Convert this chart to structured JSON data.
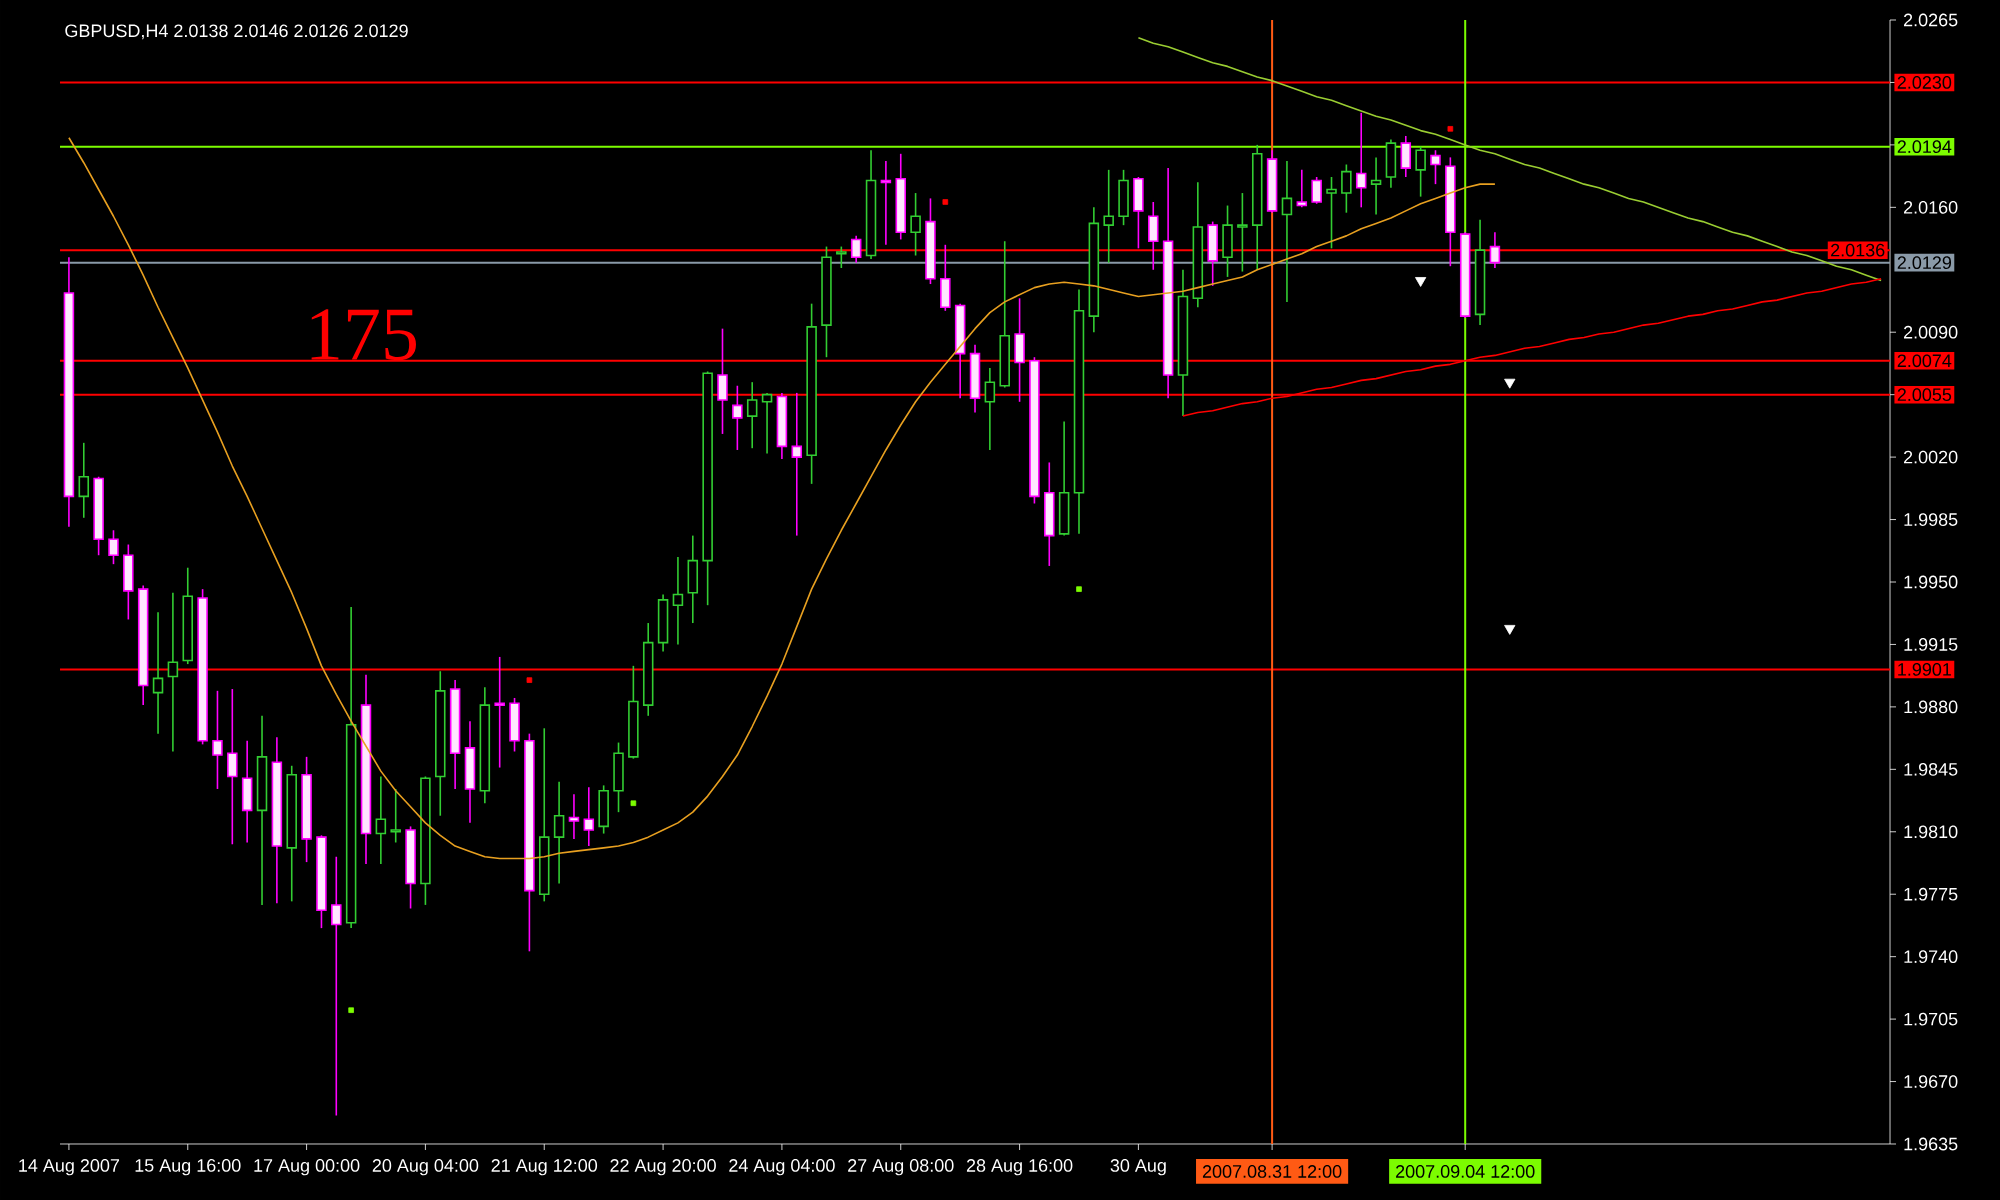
{
  "chart_data": {
    "type": "candlestick",
    "title": "GBPUSD,H4 2.0138 2.0146 2.0126 2.0129",
    "categories": [
      "14 Aug 2007",
      null,
      null,
      null,
      null,
      null,
      null,
      null,
      "15 Aug 16:00",
      null,
      null,
      null,
      null,
      null,
      null,
      null,
      "17 Aug 00:00",
      null,
      null,
      null,
      null,
      null,
      null,
      null,
      "20 Aug 04:00",
      null,
      null,
      null,
      null,
      null,
      null,
      null,
      "21 Aug 12:00",
      null,
      null,
      null,
      null,
      null,
      null,
      null,
      "22 Aug 20:00",
      null,
      null,
      null,
      null,
      null,
      null,
      null,
      "24 Aug 04:00",
      null,
      null,
      null,
      null,
      null,
      null,
      null,
      "27 Aug 08:00",
      null,
      null,
      null,
      null,
      null,
      null,
      null,
      "28 Aug 16:00",
      null,
      null,
      null,
      null,
      null,
      null,
      null,
      "30 Aug",
      null,
      null,
      null,
      null,
      null,
      null,
      null,
      null,
      "2007.08.31 12:00",
      null,
      null,
      null,
      null,
      null,
      null,
      null,
      null,
      null,
      null,
      null,
      null,
      "2007.09.04 12:00",
      null,
      null,
      null,
      null,
      null,
      null,
      null,
      null,
      null,
      null,
      null,
      null,
      null,
      null,
      null,
      null,
      null,
      null,
      null,
      null,
      null,
      null,
      null,
      null,
      null,
      null,
      null,
      null
    ],
    "ohlc": [
      [
        2.0112,
        2.0132,
        1.9981,
        1.9998
      ],
      [
        1.9998,
        2.0028,
        1.9986,
        2.0009
      ],
      [
        2.0008,
        2.0009,
        1.9965,
        1.9974
      ],
      [
        1.9974,
        1.9979,
        1.996,
        1.9965
      ],
      [
        1.9965,
        1.9971,
        1.9929,
        1.9945
      ],
      [
        1.9946,
        1.9948,
        1.9881,
        1.9892
      ],
      [
        1.9888,
        1.9933,
        1.9865,
        1.9896
      ],
      [
        1.9897,
        1.9944,
        1.9855,
        1.9905
      ],
      [
        1.9906,
        1.9958,
        1.9904,
        1.9942
      ],
      [
        1.9941,
        1.9946,
        1.9859,
        1.9861
      ],
      [
        1.9861,
        1.9889,
        1.9834,
        1.9853
      ],
      [
        1.9854,
        1.989,
        1.9803,
        1.9841
      ],
      [
        1.984,
        1.9861,
        1.9804,
        1.9822
      ],
      [
        1.9822,
        1.9875,
        1.9769,
        1.9852
      ],
      [
        1.9849,
        1.9863,
        1.977,
        1.9802
      ],
      [
        1.9801,
        1.9847,
        1.9771,
        1.9842
      ],
      [
        1.9842,
        1.9852,
        1.9793,
        1.9806
      ],
      [
        1.9807,
        1.9808,
        1.9756,
        1.9766
      ],
      [
        1.9769,
        1.9796,
        1.9651,
        1.9758
      ],
      [
        1.9759,
        1.9936,
        1.9756,
        1.987
      ],
      [
        1.9881,
        1.9898,
        1.9792,
        1.9809
      ],
      [
        1.9809,
        1.9841,
        1.9792,
        1.9817
      ],
      [
        1.981,
        1.9834,
        1.9804,
        1.9811
      ],
      [
        1.9811,
        1.9813,
        1.9767,
        1.9781
      ],
      [
        1.9781,
        1.9841,
        1.9769,
        1.984
      ],
      [
        1.9841,
        1.99,
        1.9819,
        1.9889
      ],
      [
        1.989,
        1.9895,
        1.9834,
        1.9854
      ],
      [
        1.9857,
        1.9872,
        1.9815,
        1.9834
      ],
      [
        1.9833,
        1.9891,
        1.9826,
        1.9881
      ],
      [
        1.9882,
        1.9908,
        1.9846,
        1.9881
      ],
      [
        1.9882,
        1.9885,
        1.9855,
        1.9861
      ],
      [
        1.9861,
        1.9865,
        1.9743,
        1.9777
      ],
      [
        1.9775,
        1.9868,
        1.9771,
        1.9807
      ],
      [
        1.9807,
        1.9838,
        1.9781,
        1.9819
      ],
      [
        1.9818,
        1.9831,
        1.9806,
        1.9816
      ],
      [
        1.9817,
        1.9835,
        1.9802,
        1.9811
      ],
      [
        1.9813,
        1.9836,
        1.9809,
        1.9833
      ],
      [
        1.9833,
        1.986,
        1.9821,
        1.9854
      ],
      [
        1.9852,
        1.9903,
        1.9851,
        1.9883
      ],
      [
        1.9881,
        1.9927,
        1.9875,
        1.9916
      ],
      [
        1.9916,
        1.9943,
        1.9911,
        1.994
      ],
      [
        1.9937,
        1.9964,
        1.9915,
        1.9943
      ],
      [
        1.9944,
        1.9976,
        1.9927,
        1.9962
      ],
      [
        1.9962,
        2.0068,
        1.9937,
        2.0067
      ],
      [
        2.0066,
        2.0092,
        2.0033,
        2.0052
      ],
      [
        2.0049,
        2.006,
        2.0024,
        2.0042
      ],
      [
        2.0043,
        2.0062,
        2.0025,
        2.0052
      ],
      [
        2.0051,
        2.0056,
        2.0022,
        2.0055
      ],
      [
        2.0054,
        2.0056,
        2.0019,
        2.0026
      ],
      [
        2.0026,
        2.0056,
        1.9976,
        2.002
      ],
      [
        2.0021,
        2.0106,
        2.0005,
        2.0093
      ],
      [
        2.0094,
        2.0138,
        2.0076,
        2.0132
      ],
      [
        2.0134,
        2.0138,
        2.0126,
        2.0135
      ],
      [
        2.0142,
        2.0144,
        2.0129,
        2.0132
      ],
      [
        2.0133,
        2.0192,
        2.0131,
        2.0175
      ],
      [
        2.0175,
        2.0186,
        2.0139,
        2.0174
      ],
      [
        2.0176,
        2.019,
        2.0142,
        2.0146
      ],
      [
        2.0146,
        2.0168,
        2.0133,
        2.0155
      ],
      [
        2.0152,
        2.0165,
        2.0117,
        2.012
      ],
      [
        2.012,
        2.0139,
        2.0102,
        2.0104
      ],
      [
        2.0105,
        2.0106,
        2.0053,
        2.0078
      ],
      [
        2.0078,
        2.0083,
        2.0045,
        2.0053
      ],
      [
        2.0051,
        2.007,
        2.0024,
        2.0062
      ],
      [
        2.006,
        2.0141,
        2.0059,
        2.0088
      ],
      [
        2.0089,
        2.0109,
        2.0051,
        2.0073
      ],
      [
        2.0074,
        2.0076,
        1.9994,
        1.9998
      ],
      [
        2.0,
        2.0017,
        1.9959,
        1.9976
      ],
      [
        1.9977,
        2.004,
        1.9976,
        2.0
      ],
      [
        2.0,
        2.0114,
        1.9977,
        2.0102
      ],
      [
        2.0099,
        2.016,
        2.009,
        2.0151
      ],
      [
        2.015,
        2.0181,
        2.0129,
        2.0155
      ],
      [
        2.0155,
        2.0181,
        2.015,
        2.0175
      ],
      [
        2.0176,
        2.0177,
        2.0137,
        2.0158
      ],
      [
        2.0155,
        2.0163,
        2.0125,
        2.0141
      ],
      [
        2.0141,
        2.0182,
        2.0053,
        2.0066
      ],
      [
        2.0066,
        2.0125,
        2.0043,
        2.011
      ],
      [
        2.0109,
        2.0174,
        2.0104,
        2.0149
      ],
      [
        2.015,
        2.0152,
        2.0116,
        2.013
      ],
      [
        2.0132,
        2.0161,
        2.0121,
        2.015
      ],
      [
        2.0149,
        2.0168,
        2.0124,
        2.015
      ],
      [
        2.015,
        2.0195,
        2.0125,
        2.019
      ],
      [
        2.0187,
        2.0192,
        2.0157,
        2.0158
      ],
      [
        2.0156,
        2.0186,
        2.0107,
        2.0165
      ],
      [
        2.0163,
        2.0181,
        2.016,
        2.0161
      ],
      [
        2.0175,
        2.0177,
        2.0162,
        2.0163
      ],
      [
        2.0168,
        2.0177,
        2.0137,
        2.017
      ],
      [
        2.0168,
        2.0184,
        2.0157,
        2.018
      ],
      [
        2.0179,
        2.0213,
        2.016,
        2.0171
      ],
      [
        2.0173,
        2.0188,
        2.0156,
        2.0175
      ],
      [
        2.0177,
        2.0198,
        2.0171,
        2.0196
      ],
      [
        2.0196,
        2.02,
        2.0177,
        2.0182
      ],
      [
        2.0181,
        2.0194,
        2.0166,
        2.0192
      ],
      [
        2.0189,
        2.0192,
        2.0173,
        2.0184
      ],
      [
        2.0183,
        2.0188,
        2.0127,
        2.0146
      ],
      [
        2.0145,
        2.0146,
        2.0098,
        2.0099
      ],
      [
        2.01,
        2.0153,
        2.0094,
        2.0136
      ],
      [
        2.0138,
        2.0146,
        2.0126,
        2.0129
      ],
      null,
      null,
      null,
      null,
      null,
      null,
      null,
      null,
      null,
      null,
      null,
      null,
      null,
      null,
      null,
      null,
      null,
      null,
      null,
      null,
      null,
      null,
      null,
      null,
      null,
      null
    ],
    "series": [
      {
        "type": "line",
        "color": "#e8a020",
        "values": [
          2.0199,
          2.0185,
          2.017,
          2.0155,
          2.0139,
          2.0122,
          2.0104,
          2.0087,
          2.007,
          2.0052,
          2.0034,
          2.0015,
          1.9998,
          1.998,
          1.9962,
          1.9944,
          1.9924,
          1.9903,
          1.9887,
          1.9872,
          1.9858,
          1.9844,
          1.9833,
          1.9824,
          1.9815,
          1.9808,
          1.9802,
          1.9799,
          1.9796,
          1.9795,
          1.9795,
          1.9795,
          1.9796,
          1.9798,
          1.9799,
          1.98,
          1.9801,
          1.9802,
          1.9804,
          1.9807,
          1.9811,
          1.9815,
          1.9821,
          1.983,
          1.9841,
          1.9853,
          1.9869,
          1.9886,
          1.9904,
          1.9925,
          1.9946,
          1.9963,
          1.9979,
          1.9994,
          2.0009,
          2.0024,
          2.0038,
          2.0051,
          2.0062,
          2.0072,
          2.0082,
          2.0092,
          2.0101,
          2.0107,
          2.0111,
          2.0115,
          2.0117,
          2.0118,
          2.0117,
          2.0116,
          2.0114,
          2.0112,
          2.011,
          2.0111,
          2.0112,
          2.0113,
          2.0115,
          2.0117,
          2.0119,
          2.0121,
          2.0125,
          2.0128,
          2.0131,
          2.0134,
          2.0138,
          2.0141,
          2.0144,
          2.0148,
          2.0151,
          2.0154,
          2.0158,
          2.0162,
          2.0165,
          2.0168,
          2.0171,
          2.0173,
          2.0173,
          null,
          null,
          null,
          null,
          null,
          null,
          null,
          null,
          null,
          null,
          null,
          null,
          null,
          null,
          null,
          null,
          null,
          null,
          null,
          null,
          null,
          null,
          null,
          null,
          null,
          null
        ]
      },
      {
        "type": "line",
        "color": "#9acd32",
        "values": [
          null,
          null,
          null,
          null,
          null,
          null,
          null,
          null,
          null,
          null,
          null,
          null,
          null,
          null,
          null,
          null,
          null,
          null,
          null,
          null,
          null,
          null,
          null,
          null,
          null,
          null,
          null,
          null,
          null,
          null,
          null,
          null,
          null,
          null,
          null,
          null,
          null,
          null,
          null,
          null,
          null,
          null,
          null,
          null,
          null,
          null,
          null,
          null,
          null,
          null,
          null,
          null,
          null,
          null,
          null,
          null,
          null,
          null,
          null,
          null,
          null,
          null,
          null,
          null,
          null,
          null,
          null,
          null,
          null,
          null,
          null,
          null,
          2.0255,
          2.0252,
          2.025,
          2.0247,
          2.0244,
          2.0241,
          2.0239,
          2.0236,
          2.0233,
          2.0231,
          2.0228,
          2.0225,
          2.0222,
          2.022,
          2.0217,
          2.0214,
          2.0211,
          2.0209,
          2.0206,
          2.0203,
          2.0201,
          2.0198,
          2.0195,
          2.0192,
          2.019,
          2.0187,
          2.0184,
          2.0182,
          2.0179,
          2.0176,
          2.0173,
          2.0171,
          2.0168,
          2.0165,
          2.0163,
          2.016,
          2.0157,
          2.0154,
          2.0152,
          2.0149,
          2.0146,
          2.0144,
          2.0141,
          2.0138,
          2.0135,
          2.0133,
          2.013,
          2.0127,
          2.0125,
          2.0122,
          2.0119
        ]
      },
      {
        "type": "line",
        "color": "#ff0000",
        "values": [
          null,
          null,
          null,
          null,
          null,
          null,
          null,
          null,
          null,
          null,
          null,
          null,
          null,
          null,
          null,
          null,
          null,
          null,
          null,
          null,
          null,
          null,
          null,
          null,
          null,
          null,
          null,
          null,
          null,
          null,
          null,
          null,
          null,
          null,
          null,
          null,
          null,
          null,
          null,
          null,
          null,
          null,
          null,
          null,
          null,
          null,
          null,
          null,
          null,
          null,
          null,
          null,
          null,
          null,
          null,
          null,
          null,
          null,
          null,
          null,
          null,
          null,
          null,
          null,
          null,
          null,
          null,
          null,
          null,
          null,
          null,
          null,
          null,
          null,
          null,
          2.0043,
          2.0045,
          2.0046,
          2.0048,
          2.005,
          2.0051,
          2.0053,
          2.0054,
          2.0056,
          2.0058,
          2.0059,
          2.0061,
          2.0063,
          2.0064,
          2.0066,
          2.0068,
          2.0069,
          2.0071,
          2.0072,
          2.0074,
          2.0076,
          2.0077,
          2.0079,
          2.0081,
          2.0082,
          2.0084,
          2.0086,
          2.0087,
          2.0089,
          2.009,
          2.0092,
          2.0094,
          2.0095,
          2.0097,
          2.0099,
          2.01,
          2.0102,
          2.0103,
          2.0105,
          2.0107,
          2.0108,
          2.011,
          2.0112,
          2.0113,
          2.0115,
          2.0117,
          2.0118,
          2.012
        ]
      },
      {
        "type": "scatter",
        "color": "#ff0000",
        "marker": "square",
        "values": [
          null,
          null,
          null,
          null,
          null,
          null,
          null,
          null,
          null,
          null,
          null,
          null,
          null,
          null,
          null,
          null,
          null,
          null,
          null,
          null,
          null,
          null,
          null,
          null,
          null,
          null,
          null,
          null,
          null,
          null,
          null,
          1.9895,
          null,
          null,
          null,
          null,
          null,
          null,
          null,
          null,
          null,
          null,
          null,
          null,
          null,
          null,
          null,
          null,
          null,
          null,
          null,
          null,
          null,
          null,
          null,
          null,
          null,
          null,
          null,
          2.0163,
          null,
          null,
          null,
          null,
          null,
          null,
          null,
          null,
          null,
          null,
          null,
          null,
          null,
          null,
          null,
          null,
          null,
          null,
          null,
          null,
          null,
          null,
          null,
          null,
          null,
          null,
          null,
          null,
          null,
          null,
          null,
          null,
          null,
          2.0204,
          null,
          null,
          null,
          null,
          null,
          null,
          null,
          null,
          null,
          null,
          null,
          null,
          null,
          null,
          null,
          null,
          null,
          null,
          null,
          null,
          null,
          null,
          null,
          null,
          null,
          null,
          null,
          null,
          null
        ]
      },
      {
        "type": "scatter",
        "color": "#7cfc00",
        "marker": "square",
        "values": [
          null,
          null,
          null,
          null,
          null,
          null,
          null,
          null,
          null,
          null,
          null,
          null,
          null,
          null,
          null,
          null,
          null,
          null,
          null,
          1.971,
          null,
          null,
          null,
          null,
          null,
          null,
          null,
          null,
          null,
          null,
          null,
          null,
          null,
          null,
          null,
          null,
          null,
          null,
          1.9826,
          null,
          null,
          null,
          null,
          null,
          null,
          null,
          null,
          null,
          null,
          null,
          null,
          null,
          null,
          null,
          null,
          null,
          null,
          null,
          null,
          null,
          null,
          null,
          null,
          null,
          null,
          null,
          null,
          null,
          1.9946,
          null,
          null,
          null,
          null,
          null,
          null,
          null,
          null,
          null,
          null,
          null,
          null,
          null,
          null,
          null,
          null,
          null,
          null,
          null,
          null,
          null,
          null,
          null,
          null,
          null,
          null,
          null,
          null,
          null,
          null,
          null,
          null,
          null,
          null,
          null,
          null,
          null,
          null,
          null,
          null,
          null,
          null,
          null,
          null,
          null,
          null,
          null,
          null,
          null,
          null,
          null,
          null,
          null,
          null
        ]
      },
      {
        "type": "scatter",
        "color": "#ffffff",
        "marker": "triangle",
        "values": [
          null,
          null,
          null,
          null,
          null,
          null,
          null,
          null,
          null,
          null,
          null,
          null,
          null,
          null,
          null,
          null,
          null,
          null,
          null,
          null,
          null,
          null,
          null,
          null,
          null,
          null,
          null,
          null,
          null,
          null,
          null,
          null,
          null,
          null,
          null,
          null,
          null,
          null,
          null,
          null,
          null,
          null,
          null,
          null,
          null,
          null,
          null,
          null,
          null,
          null,
          null,
          null,
          null,
          null,
          null,
          null,
          null,
          null,
          null,
          null,
          null,
          null,
          null,
          null,
          null,
          null,
          null,
          null,
          null,
          null,
          null,
          null,
          null,
          null,
          null,
          null,
          null,
          null,
          null,
          null,
          null,
          null,
          null,
          null,
          null,
          null,
          null,
          null,
          null,
          null,
          null,
          2.0119,
          null,
          null,
          null,
          null,
          null,
          2.0062,
          null,
          null,
          null,
          null,
          null,
          null,
          null,
          null,
          null,
          null,
          null,
          null,
          null,
          null,
          null,
          null,
          null,
          null,
          null,
          null,
          null,
          null,
          null,
          null,
          null
        ]
      },
      {
        "type": "scatter",
        "color": "#ffffff",
        "marker": "triangle",
        "values": [
          null,
          null,
          null,
          null,
          null,
          null,
          null,
          null,
          null,
          null,
          null,
          null,
          null,
          null,
          null,
          null,
          null,
          null,
          null,
          null,
          null,
          null,
          null,
          null,
          null,
          null,
          null,
          null,
          null,
          null,
          null,
          null,
          null,
          null,
          null,
          null,
          null,
          null,
          null,
          null,
          null,
          null,
          null,
          null,
          null,
          null,
          null,
          null,
          null,
          null,
          null,
          null,
          null,
          null,
          null,
          null,
          null,
          null,
          null,
          null,
          null,
          null,
          null,
          null,
          null,
          null,
          null,
          null,
          null,
          null,
          null,
          null,
          null,
          null,
          null,
          null,
          null,
          null,
          null,
          null,
          null,
          null,
          null,
          null,
          null,
          null,
          null,
          null,
          null,
          null,
          null,
          null,
          null,
          null,
          null,
          null,
          null,
          1.9924,
          null,
          null,
          null,
          null,
          null,
          null,
          null,
          null,
          null,
          null,
          null,
          null,
          null,
          null,
          null,
          null,
          null,
          null,
          null,
          null,
          null,
          null,
          null,
          null,
          null
        ]
      }
    ],
    "ylim": [
      1.9635,
      2.0265
    ],
    "yticks": [
      2.0265,
      {
        "value": 2.023,
        "label": null
      },
      {
        "value": 2.0195,
        "label": null
      },
      {
        "value": 2.016,
        "label": "2.0160"
      },
      {
        "value": 2.009,
        "label": "2.0090"
      },
      {
        "value": 2.0055,
        "label": null
      },
      {
        "value": 2.002,
        "label": "2.0020"
      },
      1.9985,
      {
        "value": 1.995,
        "label": "1.9950"
      },
      1.9915,
      {
        "value": 1.988,
        "label": "1.9880"
      },
      1.9845,
      {
        "value": 1.981,
        "label": "1.9810"
      },
      1.9775,
      {
        "value": 1.974,
        "label": "1.9740"
      },
      1.9705,
      {
        "value": 1.967,
        "label": "1.9670"
      },
      1.9635
    ],
    "ref_lines": [
      {
        "axis": "y",
        "value": 2.023,
        "label": "2.0230",
        "color": "#ff0000"
      },
      {
        "axis": "y",
        "value": 2.0194,
        "label": "2.0194",
        "color": "#7cfc00"
      },
      {
        "axis": "y",
        "value": 2.0129,
        "label": "2.0129",
        "color": "#8a9aa8"
      },
      {
        "axis": "y",
        "value": 2.0136,
        "label": "2.0136",
        "color": "#ff0000"
      },
      {
        "axis": "y",
        "value": 2.0074,
        "label": "2.0074",
        "color": "#ff0000"
      },
      {
        "axis": "y",
        "value": 2.0055,
        "label": "2.0055",
        "color": "#ff0000"
      },
      {
        "axis": "y",
        "value": 1.9901,
        "label": "1.9901",
        "color": "#ff0000"
      },
      {
        "axis": "x",
        "value": "2007.08.31 12:00",
        "color": "#ff5a14"
      },
      {
        "axis": "x",
        "value": "2007.09.04 12:00",
        "color": "#7cfc00"
      }
    ],
    "annotations": [
      "175"
    ]
  }
}
